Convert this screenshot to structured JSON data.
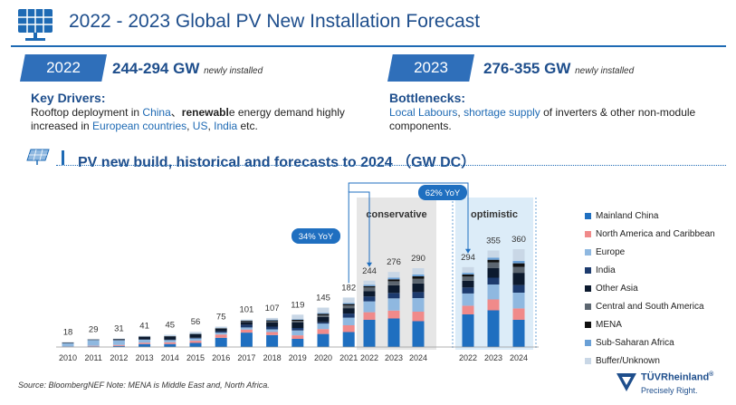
{
  "header": {
    "title": "2022 - 2023 Global PV New Installation Forecast",
    "icon": "solar-panel-icon"
  },
  "forecast_2022": {
    "year": "2022",
    "range": "244-294 GW",
    "note": "newly installed",
    "heading": "Key Drivers:",
    "parts": [
      {
        "t": "Rooftop deployment in ",
        "s": ""
      },
      {
        "t": "China",
        "s": "hl"
      },
      {
        "t": "、",
        "s": ""
      },
      {
        "t": "renewabl",
        "s": "b"
      },
      {
        "t": "e energy demand highly increased in ",
        "s": ""
      },
      {
        "t": "European countries",
        "s": "hl"
      },
      {
        "t": ", ",
        "s": ""
      },
      {
        "t": "US",
        "s": "hl"
      },
      {
        "t": ", ",
        "s": ""
      },
      {
        "t": "India",
        "s": "hl"
      },
      {
        "t": " etc.",
        "s": ""
      }
    ]
  },
  "forecast_2023": {
    "year": "2023",
    "range": "276-355 GW",
    "note": "newly installed",
    "heading": "Bottlenecks:",
    "parts": [
      {
        "t": "Local Labours",
        "s": "hl"
      },
      {
        "t": ", ",
        "s": ""
      },
      {
        "t": "shortage supply",
        "s": "hl"
      },
      {
        "t": " of inverters & other non-module components.",
        "s": ""
      }
    ]
  },
  "subtitle": "PV new build, historical and forecasts to 2024 （GW DC）",
  "chart_data": {
    "type": "bar",
    "stacked": true,
    "categories": [
      "2010",
      "2011",
      "2012",
      "2013",
      "2014",
      "2015",
      "2016",
      "2017",
      "2018",
      "2019",
      "2020",
      "2021",
      "2022",
      "2023",
      "2024",
      "2022",
      "2023",
      "2024"
    ],
    "totals": [
      18,
      29,
      31,
      41,
      45,
      56,
      75,
      101,
      107,
      119,
      145,
      182,
      244,
      276,
      290,
      294,
      355,
      360
    ],
    "series": [
      {
        "name": "Mainland China",
        "color": "#1f6fc0",
        "values": [
          0.5,
          2.5,
          4,
          11,
          11,
          15,
          34,
          53,
          44,
          30,
          48,
          55,
          100,
          105,
          95,
          120,
          135,
          100
        ]
      },
      {
        "name": "North America and Caribbean",
        "color": "#f08a8a",
        "values": [
          1,
          2,
          3.5,
          5,
          6.5,
          8,
          12,
          11,
          11,
          13,
          18,
          25,
          28,
          29,
          35,
          32,
          40,
          42
        ]
      },
      {
        "name": "Europe",
        "color": "#8fb8e0",
        "values": [
          13,
          21,
          17,
          11,
          8,
          8.5,
          7,
          8,
          10,
          18,
          20,
          28,
          40,
          45,
          50,
          45,
          55,
          58
        ]
      },
      {
        "name": "India",
        "color": "#1d3b6e",
        "values": [
          0.1,
          0.3,
          1,
          1,
          1.5,
          2.5,
          5,
          10,
          10,
          9,
          5,
          15,
          18,
          20,
          22,
          22,
          25,
          28
        ]
      },
      {
        "name": "Other Asia",
        "color": "#0c1a2e",
        "values": [
          2,
          2,
          3.5,
          10,
          12,
          13,
          9,
          10,
          15,
          20,
          20,
          20,
          20,
          28,
          32,
          25,
          36,
          45
        ]
      },
      {
        "name": "Central and South America",
        "color": "#5c6670",
        "values": [
          0.1,
          0.1,
          0.2,
          0.3,
          0.5,
          1,
          1,
          3,
          5,
          6,
          6,
          10,
          13,
          15,
          17,
          15,
          20,
          22
        ]
      },
      {
        "name": "MENA",
        "color": "#101010",
        "values": [
          0.1,
          0.1,
          0.3,
          0.5,
          0.5,
          1,
          1.5,
          2,
          3,
          4,
          5,
          5,
          5,
          7,
          9,
          8,
          10,
          13
        ]
      },
      {
        "name": "Sub-Saharan Africa",
        "color": "#6aa0d6",
        "values": [
          0.1,
          0.2,
          0.3,
          0.5,
          1,
          1,
          1.5,
          1,
          2,
          2,
          3,
          4,
          5,
          6,
          7,
          6,
          8,
          9
        ]
      },
      {
        "name": "Buffer/Unknown",
        "color": "#c9d7e6",
        "values": [
          1.1,
          0.8,
          1.2,
          1.7,
          4,
          6,
          4,
          3,
          7,
          17,
          20,
          20,
          15,
          21,
          23,
          21,
          26,
          43
        ]
      }
    ],
    "scenario_labels": {
      "conservative": "conservative",
      "optimistic": "optimistic"
    },
    "annotations": [
      {
        "text": "34% YoY",
        "from": "2021",
        "to": "2022 conservative"
      },
      {
        "text": "62% YoY",
        "from": "2021",
        "to": "2022 optimistic"
      }
    ]
  },
  "footer": {
    "source": "Source: BloombergNEF   Note: MENA is Middle East and, North Africa.",
    "logo_name": "TÜVRheinland",
    "reg": "®",
    "tagline": "Precisely Right."
  }
}
